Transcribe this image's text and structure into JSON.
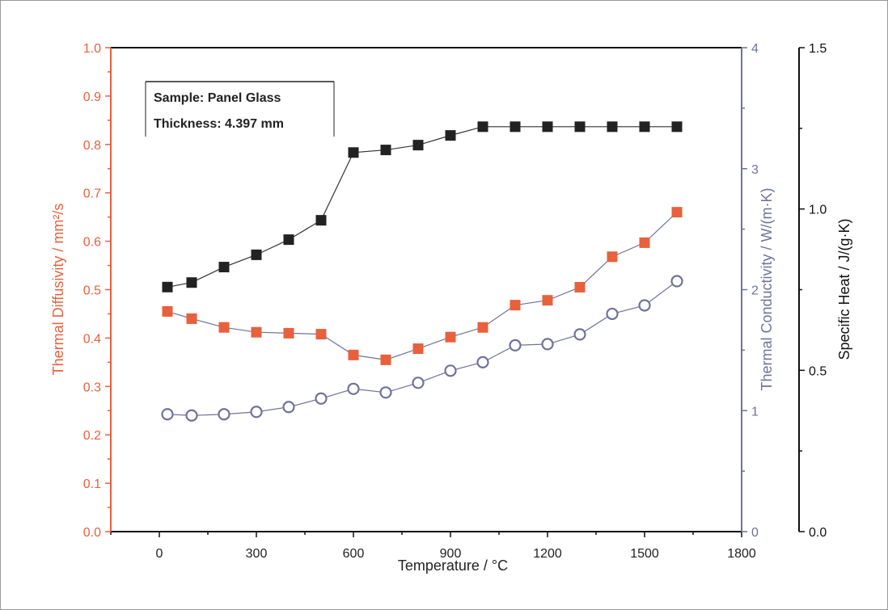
{
  "chart_data": {
    "type": "scatter",
    "title": "",
    "annotation": {
      "lines": [
        "Sample: Panel Glass",
        "Thickness: 4.397 mm"
      ]
    },
    "xlabel": "Temperature / °C",
    "xlim": [
      -150,
      1800
    ],
    "xticks": [
      0,
      300,
      600,
      900,
      1200,
      1500,
      1800
    ],
    "ylabel_left": "Thermal Diffusivity / mm²/s",
    "ylim_left": [
      0.0,
      1.0
    ],
    "yticks_left": [
      "0.0",
      "0.1",
      "0.2",
      "0.3",
      "0.4",
      "0.5",
      "0.6",
      "0.7",
      "0.8",
      "0.9",
      "1.0"
    ],
    "ylabel_right1": "Thermal Conductivity / W/(m·K)",
    "ylim_right1": [
      0,
      4
    ],
    "yticks_right1": [
      "0",
      "1",
      "2",
      "3",
      "4"
    ],
    "ylabel_right2": "Specific Heat / J/(g·K)",
    "ylim_right2": [
      0.0,
      1.5
    ],
    "yticks_right2": [
      "0.0",
      "0.5",
      "1.0",
      "1.5"
    ],
    "grid": false,
    "legend": "none",
    "colors": {
      "diffusivity": "#e8603c",
      "conductivity": "#6e7399",
      "specific_heat": "#222222"
    },
    "series": [
      {
        "axis": "left",
        "marker": "square",
        "x": [
          25,
          100,
          200,
          300,
          400,
          500,
          600,
          700,
          800,
          900,
          1000,
          1100,
          1200,
          1300,
          1400,
          1500,
          1600
        ],
        "y": [
          0.455,
          0.44,
          0.422,
          0.412,
          0.41,
          0.408,
          0.365,
          0.355,
          0.378,
          0.402,
          0.422,
          0.468,
          0.478,
          0.505,
          0.568,
          0.597,
          0.66
        ]
      },
      {
        "axis": "right1",
        "marker": "open-circle",
        "x": [
          25,
          100,
          200,
          300,
          400,
          500,
          600,
          700,
          800,
          900,
          1000,
          1100,
          1200,
          1300,
          1400,
          1500,
          1600
        ],
        "y": [
          0.97,
          0.96,
          0.97,
          0.99,
          1.03,
          1.1,
          1.18,
          1.15,
          1.23,
          1.33,
          1.4,
          1.54,
          1.55,
          1.63,
          1.8,
          1.87,
          2.07
        ]
      },
      {
        "axis": "right2",
        "marker": "square",
        "x": [
          25,
          100,
          200,
          300,
          400,
          500,
          600,
          700,
          800,
          900,
          1000,
          1100,
          1200,
          1300,
          1400,
          1500,
          1600
        ],
        "y": [
          0.758,
          0.772,
          0.82,
          0.858,
          0.905,
          0.965,
          1.175,
          1.183,
          1.198,
          1.228,
          1.255,
          1.255,
          1.255,
          1.255,
          1.255,
          1.255,
          1.255
        ]
      }
    ]
  }
}
